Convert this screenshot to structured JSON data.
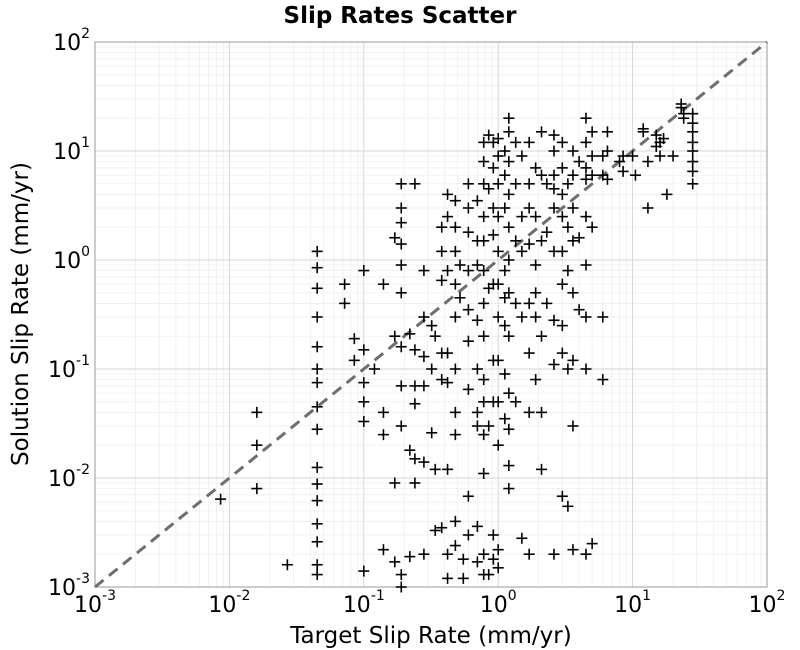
{
  "chart_data": {
    "type": "scatter",
    "title": "Slip Rates Scatter",
    "xlabel": "Target Slip Rate (mm/yr)",
    "ylabel": "Solution Slip Rate (mm/yr)",
    "xscale": "log",
    "yscale": "log",
    "xlim": [
      0.001,
      100
    ],
    "ylim": [
      0.001,
      100
    ],
    "grid": true,
    "marker": "+",
    "marker_color": "#000000",
    "reference_line": {
      "style": "dashed",
      "color": "#6e6e6e",
      "x": [
        0.001,
        100
      ],
      "y": [
        0.001,
        100
      ]
    },
    "x_ticks": [
      {
        "base": "10",
        "exp": "-3",
        "value": 0.001
      },
      {
        "base": "10",
        "exp": "-2",
        "value": 0.01
      },
      {
        "base": "10",
        "exp": "-1",
        "value": 0.1
      },
      {
        "base": "10",
        "exp": "0",
        "value": 1
      },
      {
        "base": "10",
        "exp": "1",
        "value": 10
      },
      {
        "base": "10",
        "exp": "2",
        "value": 100
      }
    ],
    "y_ticks": [
      {
        "base": "10",
        "exp": "-3",
        "value": 0.001
      },
      {
        "base": "10",
        "exp": "-2",
        "value": 0.01
      },
      {
        "base": "10",
        "exp": "-1",
        "value": 0.1
      },
      {
        "base": "10",
        "exp": "0",
        "value": 1
      },
      {
        "base": "10",
        "exp": "1",
        "value": 10
      },
      {
        "base": "10",
        "exp": "2",
        "value": 100
      }
    ],
    "points": [
      [
        0.0086,
        0.0064
      ],
      [
        0.016,
        0.04
      ],
      [
        0.016,
        0.02
      ],
      [
        0.016,
        0.008
      ],
      [
        0.027,
        0.0016
      ],
      [
        0.045,
        1.2
      ],
      [
        0.045,
        0.85
      ],
      [
        0.045,
        0.55
      ],
      [
        0.045,
        0.3
      ],
      [
        0.045,
        0.16
      ],
      [
        0.045,
        0.1
      ],
      [
        0.045,
        0.075
      ],
      [
        0.045,
        0.045
      ],
      [
        0.045,
        0.028
      ],
      [
        0.045,
        0.0125
      ],
      [
        0.045,
        0.0088
      ],
      [
        0.045,
        0.0062
      ],
      [
        0.045,
        0.0038
      ],
      [
        0.045,
        0.0026
      ],
      [
        0.045,
        0.0016
      ],
      [
        0.045,
        0.0013
      ],
      [
        0.072,
        0.6
      ],
      [
        0.072,
        0.4
      ],
      [
        0.085,
        0.19
      ],
      [
        0.085,
        0.12
      ],
      [
        0.1,
        0.8
      ],
      [
        0.1,
        0.15
      ],
      [
        0.1,
        0.075
      ],
      [
        0.1,
        0.05
      ],
      [
        0.1,
        0.033
      ],
      [
        0.1,
        0.0014
      ],
      [
        0.12,
        0.1
      ],
      [
        0.14,
        0.6
      ],
      [
        0.14,
        0.04
      ],
      [
        0.14,
        0.025
      ],
      [
        0.14,
        0.0022
      ],
      [
        0.17,
        1.6
      ],
      [
        0.17,
        0.2
      ],
      [
        0.17,
        0.009
      ],
      [
        0.17,
        0.0017
      ],
      [
        0.19,
        5.0
      ],
      [
        0.19,
        3.0
      ],
      [
        0.19,
        2.2
      ],
      [
        0.19,
        1.4
      ],
      [
        0.19,
        0.9
      ],
      [
        0.19,
        0.5
      ],
      [
        0.19,
        0.16
      ],
      [
        0.19,
        0.07
      ],
      [
        0.19,
        0.03
      ],
      [
        0.19,
        0.001
      ],
      [
        0.19,
        0.0013
      ],
      [
        0.22,
        0.21
      ],
      [
        0.22,
        0.018
      ],
      [
        0.22,
        0.0019
      ],
      [
        0.24,
        5.0
      ],
      [
        0.24,
        0.15
      ],
      [
        0.24,
        0.07
      ],
      [
        0.24,
        0.048
      ],
      [
        0.24,
        0.015
      ],
      [
        0.24,
        0.009
      ],
      [
        0.28,
        0.8
      ],
      [
        0.28,
        0.3
      ],
      [
        0.28,
        0.13
      ],
      [
        0.28,
        0.07
      ],
      [
        0.28,
        0.014
      ],
      [
        0.28,
        0.002
      ],
      [
        0.32,
        0.25
      ],
      [
        0.32,
        0.1
      ],
      [
        0.32,
        0.026
      ],
      [
        0.34,
        0.2
      ],
      [
        0.34,
        0.012
      ],
      [
        0.34,
        0.0033
      ],
      [
        0.38,
        2.0
      ],
      [
        0.38,
        1.2
      ],
      [
        0.38,
        0.65
      ],
      [
        0.38,
        0.14
      ],
      [
        0.38,
        0.08
      ],
      [
        0.38,
        0.0035
      ],
      [
        0.42,
        4.0
      ],
      [
        0.42,
        2.5
      ],
      [
        0.42,
        0.8
      ],
      [
        0.42,
        0.14
      ],
      [
        0.42,
        0.075
      ],
      [
        0.42,
        0.012
      ],
      [
        0.42,
        0.002
      ],
      [
        0.42,
        0.0012
      ],
      [
        0.48,
        3.5
      ],
      [
        0.48,
        2.0
      ],
      [
        0.48,
        1.2
      ],
      [
        0.48,
        0.6
      ],
      [
        0.48,
        0.3
      ],
      [
        0.48,
        0.1
      ],
      [
        0.48,
        0.04
      ],
      [
        0.48,
        0.025
      ],
      [
        0.48,
        0.004
      ],
      [
        0.48,
        0.0024
      ],
      [
        0.52,
        0.9
      ],
      [
        0.52,
        0.45
      ],
      [
        0.55,
        0.0018
      ],
      [
        0.55,
        0.0012
      ],
      [
        0.6,
        5.0
      ],
      [
        0.6,
        3.0
      ],
      [
        0.6,
        1.8
      ],
      [
        0.6,
        0.8
      ],
      [
        0.6,
        0.35
      ],
      [
        0.6,
        0.18
      ],
      [
        0.6,
        0.065
      ],
      [
        0.6,
        0.0068
      ],
      [
        0.6,
        0.003
      ],
      [
        0.7,
        3.5
      ],
      [
        0.7,
        1.5
      ],
      [
        0.7,
        0.9
      ],
      [
        0.7,
        0.28
      ],
      [
        0.7,
        0.1
      ],
      [
        0.7,
        0.04
      ],
      [
        0.7,
        0.03
      ],
      [
        0.7,
        0.0036
      ],
      [
        0.7,
        0.0017
      ],
      [
        0.78,
        12.0
      ],
      [
        0.78,
        8.0
      ],
      [
        0.78,
        5.0
      ],
      [
        0.78,
        2.5
      ],
      [
        0.78,
        1.5
      ],
      [
        0.78,
        0.8
      ],
      [
        0.78,
        0.4
      ],
      [
        0.78,
        0.2
      ],
      [
        0.78,
        0.08
      ],
      [
        0.78,
        0.05
      ],
      [
        0.78,
        0.025
      ],
      [
        0.78,
        0.011
      ],
      [
        0.78,
        0.002
      ],
      [
        0.78,
        0.0013
      ],
      [
        0.85,
        14.0
      ],
      [
        0.85,
        4.5
      ],
      [
        0.85,
        0.55
      ],
      [
        0.85,
        0.03
      ],
      [
        0.85,
        0.0013
      ],
      [
        0.92,
        12.0
      ],
      [
        0.92,
        7.0
      ],
      [
        0.92,
        3.0
      ],
      [
        0.92,
        1.7
      ],
      [
        0.92,
        0.6
      ],
      [
        0.92,
        0.12
      ],
      [
        0.92,
        0.05
      ],
      [
        0.92,
        0.003
      ],
      [
        0.92,
        0.0018
      ],
      [
        1.0,
        13.0
      ],
      [
        1.0,
        9.0
      ],
      [
        1.0,
        5.0
      ],
      [
        1.0,
        2.5
      ],
      [
        1.0,
        1.2
      ],
      [
        1.0,
        0.6
      ],
      [
        1.0,
        0.3
      ],
      [
        1.0,
        0.12
      ],
      [
        1.0,
        0.05
      ],
      [
        1.0,
        0.02
      ],
      [
        1.0,
        0.0022
      ],
      [
        1.0,
        0.0015
      ],
      [
        1.12,
        10.0
      ],
      [
        1.12,
        6.0
      ],
      [
        1.12,
        3.0
      ],
      [
        1.12,
        0.8
      ],
      [
        1.12,
        0.45
      ],
      [
        1.12,
        0.25
      ],
      [
        1.12,
        0.09
      ],
      [
        1.12,
        0.035
      ],
      [
        1.2,
        20.0
      ],
      [
        1.2,
        15.0
      ],
      [
        1.2,
        8.0
      ],
      [
        1.2,
        4.0
      ],
      [
        1.2,
        2.0
      ],
      [
        1.2,
        1.0
      ],
      [
        1.2,
        0.5
      ],
      [
        1.2,
        0.2
      ],
      [
        1.2,
        0.06
      ],
      [
        1.2,
        0.028
      ],
      [
        1.2,
        0.013
      ],
      [
        1.2,
        0.008
      ],
      [
        1.35,
        12.0
      ],
      [
        1.35,
        5.0
      ],
      [
        1.35,
        1.5
      ],
      [
        1.35,
        0.4
      ],
      [
        1.35,
        0.05
      ],
      [
        1.5,
        9.0
      ],
      [
        1.5,
        2.5
      ],
      [
        1.5,
        1.2
      ],
      [
        1.5,
        0.3
      ],
      [
        1.5,
        0.0028
      ],
      [
        1.7,
        12.0
      ],
      [
        1.7,
        5.0
      ],
      [
        1.7,
        3.0
      ],
      [
        1.7,
        1.4
      ],
      [
        1.7,
        0.4
      ],
      [
        1.7,
        0.14
      ],
      [
        1.7,
        0.04
      ],
      [
        1.7,
        0.002
      ],
      [
        1.9,
        7.0
      ],
      [
        1.9,
        2.5
      ],
      [
        1.9,
        0.9
      ],
      [
        1.9,
        0.5
      ],
      [
        1.9,
        0.3
      ],
      [
        1.9,
        0.08
      ],
      [
        2.1,
        15.0
      ],
      [
        2.1,
        6.0
      ],
      [
        2.1,
        1.5
      ],
      [
        2.1,
        0.2
      ],
      [
        2.1,
        0.04
      ],
      [
        2.1,
        0.012
      ],
      [
        2.3,
        5.0
      ],
      [
        2.3,
        1.8
      ],
      [
        2.3,
        0.4
      ],
      [
        2.6,
        14.0
      ],
      [
        2.6,
        10.0
      ],
      [
        2.6,
        6.0
      ],
      [
        2.6,
        4.5
      ],
      [
        2.6,
        3.0
      ],
      [
        2.6,
        1.2
      ],
      [
        2.6,
        0.28
      ],
      [
        2.6,
        0.11
      ],
      [
        2.6,
        0.002
      ],
      [
        3.0,
        12.0
      ],
      [
        3.0,
        7.0
      ],
      [
        3.0,
        4.0
      ],
      [
        3.0,
        2.5
      ],
      [
        3.0,
        1.2
      ],
      [
        3.0,
        0.6
      ],
      [
        3.0,
        0.25
      ],
      [
        3.0,
        0.14
      ],
      [
        3.0,
        0.0068
      ],
      [
        3.3,
        5.0
      ],
      [
        3.3,
        2.0
      ],
      [
        3.3,
        0.8
      ],
      [
        3.3,
        0.1
      ],
      [
        3.3,
        0.0055
      ],
      [
        3.6,
        10.0
      ],
      [
        3.6,
        6.0
      ],
      [
        3.6,
        3.0
      ],
      [
        3.6,
        1.5
      ],
      [
        3.6,
        0.5
      ],
      [
        3.6,
        0.12
      ],
      [
        3.6,
        0.03
      ],
      [
        3.6,
        0.0022
      ],
      [
        4.0,
        8.0
      ],
      [
        4.0,
        1.6
      ],
      [
        4.0,
        0.35
      ],
      [
        4.5,
        20.0
      ],
      [
        4.5,
        12.0
      ],
      [
        4.5,
        7.0
      ],
      [
        4.5,
        5.5
      ],
      [
        4.5,
        2.5
      ],
      [
        4.5,
        0.9
      ],
      [
        4.5,
        0.3
      ],
      [
        4.5,
        0.1
      ],
      [
        4.5,
        0.002
      ],
      [
        5.0,
        15.0
      ],
      [
        5.0,
        9.0
      ],
      [
        5.0,
        6.0
      ],
      [
        5.0,
        2.0
      ],
      [
        5.0,
        0.0025
      ],
      [
        6.0,
        9.0
      ],
      [
        6.0,
        6.0
      ],
      [
        6.0,
        0.3
      ],
      [
        6.0,
        0.08
      ],
      [
        6.5,
        15.0
      ],
      [
        6.5,
        10.0
      ],
      [
        6.5,
        5.5
      ],
      [
        8.0,
        8.0
      ],
      [
        8.5,
        9.0
      ],
      [
        8.5,
        6.5
      ],
      [
        10.0,
        9.0
      ],
      [
        10.5,
        6.0
      ],
      [
        12.0,
        16.0
      ],
      [
        12.0,
        15.0
      ],
      [
        13.0,
        8.0
      ],
      [
        13.0,
        3.0
      ],
      [
        15.0,
        14.0
      ],
      [
        15.0,
        11.0
      ],
      [
        16.0,
        12.0
      ],
      [
        16.0,
        9.0
      ],
      [
        17.0,
        13.0
      ],
      [
        18.0,
        4.0
      ],
      [
        20.0,
        9.0
      ],
      [
        23.0,
        27.0
      ],
      [
        23.0,
        25.0
      ],
      [
        24.0,
        22.0
      ],
      [
        24.0,
        20.0
      ],
      [
        28.0,
        22.0
      ],
      [
        28.0,
        18.0
      ],
      [
        28.0,
        15.0
      ],
      [
        28.0,
        12.0
      ],
      [
        28.0,
        10.0
      ],
      [
        28.0,
        8.0
      ],
      [
        28.0,
        6.5
      ],
      [
        28.0,
        5.0
      ]
    ]
  }
}
